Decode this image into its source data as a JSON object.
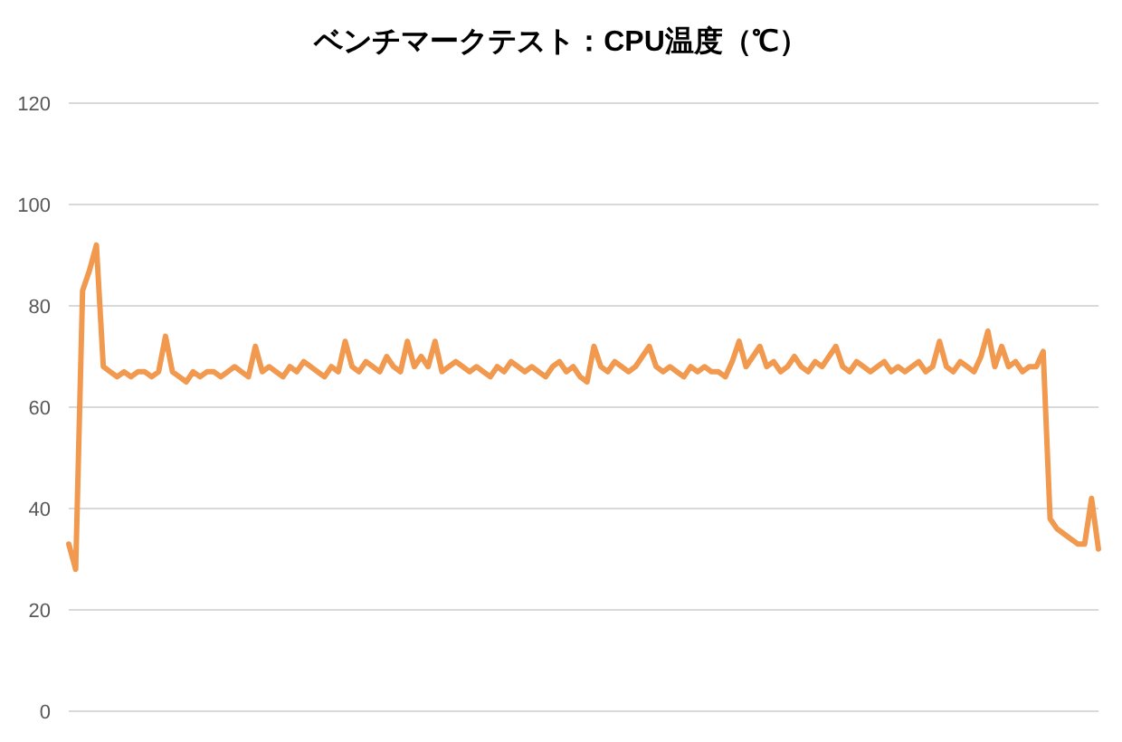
{
  "chart_data": {
    "type": "line",
    "title": "ベンチマークテスト：CPU温度（℃）",
    "categories": [
      null,
      null,
      null,
      null,
      null,
      null,
      null,
      null,
      null,
      null,
      null,
      null,
      null,
      null,
      null,
      null,
      null,
      null,
      null,
      null,
      null,
      null,
      null,
      null,
      null,
      null,
      null,
      null,
      null,
      null,
      null,
      null,
      null,
      null,
      null,
      null,
      null,
      null,
      null,
      null,
      null,
      null,
      null,
      null,
      null,
      null,
      null,
      null,
      null,
      null,
      null,
      null,
      null,
      null,
      null,
      null,
      null,
      null,
      null,
      null,
      null,
      null,
      null,
      null,
      null,
      null,
      null,
      null,
      null,
      null,
      null,
      null,
      null,
      null,
      null,
      null,
      null,
      null,
      null,
      null,
      null,
      null,
      null,
      null,
      null,
      null,
      null,
      null,
      null,
      null,
      null,
      null,
      null,
      null,
      null,
      null,
      null,
      null,
      null,
      null,
      null,
      null,
      null,
      null,
      null,
      null,
      null,
      null,
      null,
      null,
      null,
      null,
      null,
      null,
      null,
      null,
      null,
      null,
      null,
      null,
      null,
      null,
      null,
      null,
      null,
      null,
      null,
      null,
      null,
      null,
      null,
      null,
      null,
      null,
      null,
      null,
      null,
      null,
      null,
      null,
      null,
      null,
      null,
      null,
      null,
      null,
      null,
      null,
      null,
      null
    ],
    "series": [
      {
        "color": "#f0994f",
        "values": [
          33,
          28,
          83,
          87,
          92,
          68,
          67,
          66,
          67,
          66,
          67,
          67,
          66,
          67,
          74,
          67,
          66,
          65,
          67,
          66,
          67,
          67,
          66,
          67,
          68,
          67,
          66,
          72,
          67,
          68,
          67,
          66,
          68,
          67,
          69,
          68,
          67,
          66,
          68,
          67,
          73,
          68,
          67,
          69,
          68,
          67,
          70,
          68,
          67,
          73,
          68,
          70,
          68,
          73,
          67,
          68,
          69,
          68,
          67,
          68,
          67,
          66,
          68,
          67,
          69,
          68,
          67,
          68,
          67,
          66,
          68,
          69,
          67,
          68,
          66,
          65,
          72,
          68,
          67,
          69,
          68,
          67,
          68,
          70,
          72,
          68,
          67,
          68,
          67,
          66,
          68,
          67,
          68,
          67,
          67,
          66,
          69,
          73,
          68,
          70,
          72,
          68,
          69,
          67,
          68,
          70,
          68,
          67,
          69,
          68,
          70,
          72,
          68,
          67,
          69,
          68,
          67,
          68,
          69,
          67,
          68,
          67,
          68,
          69,
          67,
          68,
          73,
          68,
          67,
          69,
          68,
          67,
          70,
          75,
          68,
          72,
          68,
          69,
          67,
          68,
          68,
          71,
          38,
          36,
          35,
          34,
          33,
          33,
          42,
          32
        ]
      }
    ],
    "ylim": [
      0,
      120
    ],
    "yticks": [
      0,
      20,
      40,
      60,
      80,
      100,
      120
    ],
    "grid": "y",
    "tick_labels": "y",
    "marker": "none",
    "line_style": "solid"
  }
}
